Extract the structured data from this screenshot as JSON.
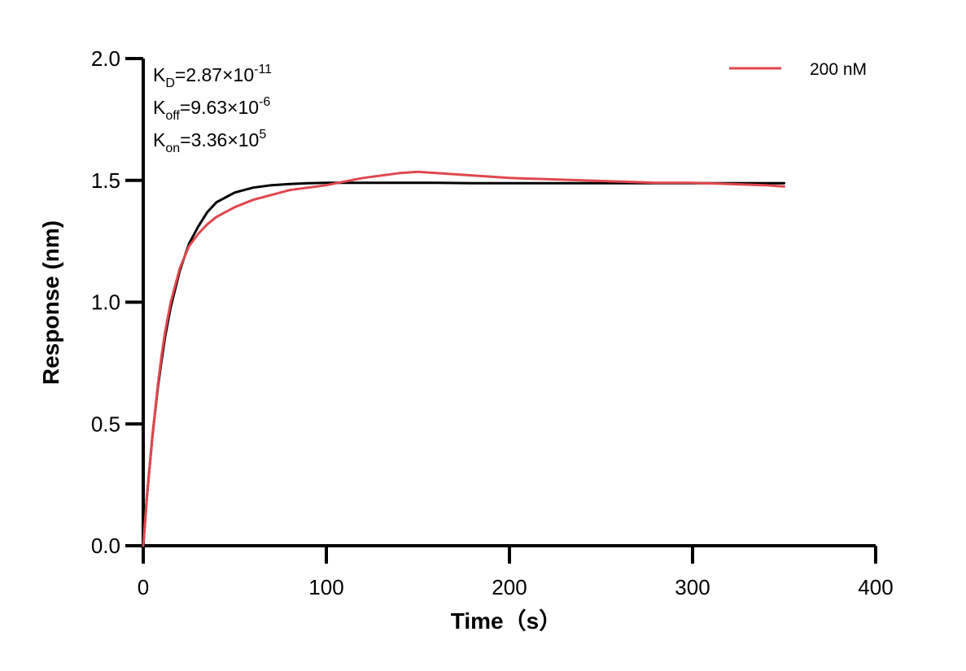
{
  "chart_data": {
    "type": "line",
    "xlabel": "Time（s）",
    "ylabel": "Response (nm)",
    "xlim": [
      0,
      400
    ],
    "ylim": [
      0,
      2.0
    ],
    "x_ticks": [
      "0",
      "100",
      "200",
      "300",
      "400"
    ],
    "y_ticks": [
      "0.0",
      "0.5",
      "1.0",
      "1.5",
      "2.0"
    ],
    "grid": false,
    "legend_position": "top-right",
    "annotations": {
      "kd": {
        "label": "K",
        "sub": "D",
        "mantissa": "=2.87×10",
        "exp": "-11"
      },
      "koff": {
        "label": "K",
        "sub": "off",
        "mantissa": "=9.63×10",
        "exp": "-6"
      },
      "kon": {
        "label": "K",
        "sub": "on",
        "mantissa": "=3.36×10",
        "exp": "5"
      }
    },
    "series": [
      {
        "name": "200 nM",
        "color": "#e0474c",
        "role": "measured",
        "x": [
          0,
          2,
          5,
          8,
          10,
          12,
          15,
          20,
          25,
          30,
          35,
          40,
          50,
          60,
          70,
          80,
          90,
          100,
          110,
          120,
          130,
          140,
          150,
          160,
          170,
          180,
          190,
          200,
          220,
          240,
          260,
          280,
          300,
          320,
          340,
          350
        ],
        "y": [
          0.0,
          0.2,
          0.45,
          0.66,
          0.78,
          0.88,
          1.0,
          1.14,
          1.23,
          1.28,
          1.32,
          1.35,
          1.39,
          1.42,
          1.44,
          1.46,
          1.47,
          1.48,
          1.495,
          1.51,
          1.52,
          1.53,
          1.535,
          1.53,
          1.525,
          1.52,
          1.515,
          1.51,
          1.505,
          1.5,
          1.495,
          1.49,
          1.49,
          1.485,
          1.48,
          1.475
        ]
      },
      {
        "name": "",
        "color": "#000000",
        "role": "fit",
        "x": [
          0,
          2,
          5,
          8,
          10,
          12,
          15,
          20,
          25,
          30,
          35,
          40,
          50,
          60,
          70,
          80,
          90,
          100,
          120,
          140,
          160,
          180,
          200,
          250,
          300,
          350
        ],
        "y": [
          0.0,
          0.2,
          0.45,
          0.65,
          0.76,
          0.86,
          0.98,
          1.13,
          1.24,
          1.31,
          1.37,
          1.41,
          1.45,
          1.47,
          1.48,
          1.485,
          1.488,
          1.49,
          1.49,
          1.49,
          1.49,
          1.488,
          1.488,
          1.488,
          1.488,
          1.488
        ]
      }
    ]
  }
}
